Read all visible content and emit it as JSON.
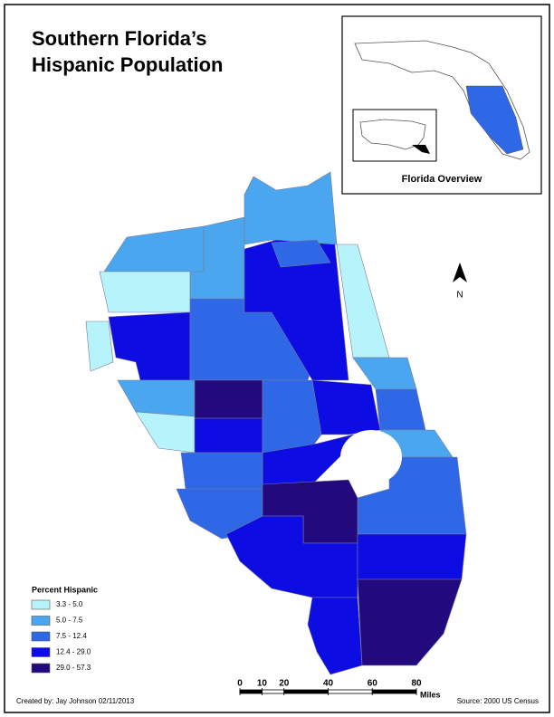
{
  "title": [
    "Southern Florida’s",
    "Hispanic Population"
  ],
  "overview": {
    "label": "Florida Overview"
  },
  "legend": {
    "title": "Percent Hispanic",
    "items": [
      {
        "label": "3.3 - 5.0",
        "color": "#b6f3fb"
      },
      {
        "label": "5.0 - 7.5",
        "color": "#4aa6ee"
      },
      {
        "label": "7.5 - 12.4",
        "color": "#2f68e6"
      },
      {
        "label": "12.4 - 29.0",
        "color": "#0c0ce3"
      },
      {
        "label": "29.0 - 57.3",
        "color": "#23097e"
      }
    ]
  },
  "north_arrow": {
    "label": "N"
  },
  "scale_bar": {
    "ticks": [
      0,
      10,
      20,
      40,
      60,
      80
    ],
    "unit": "Miles"
  },
  "footer": {
    "credit": "Created by: Jay Johnson 02/11/2013",
    "source": "Source: 2000 US Census"
  }
}
